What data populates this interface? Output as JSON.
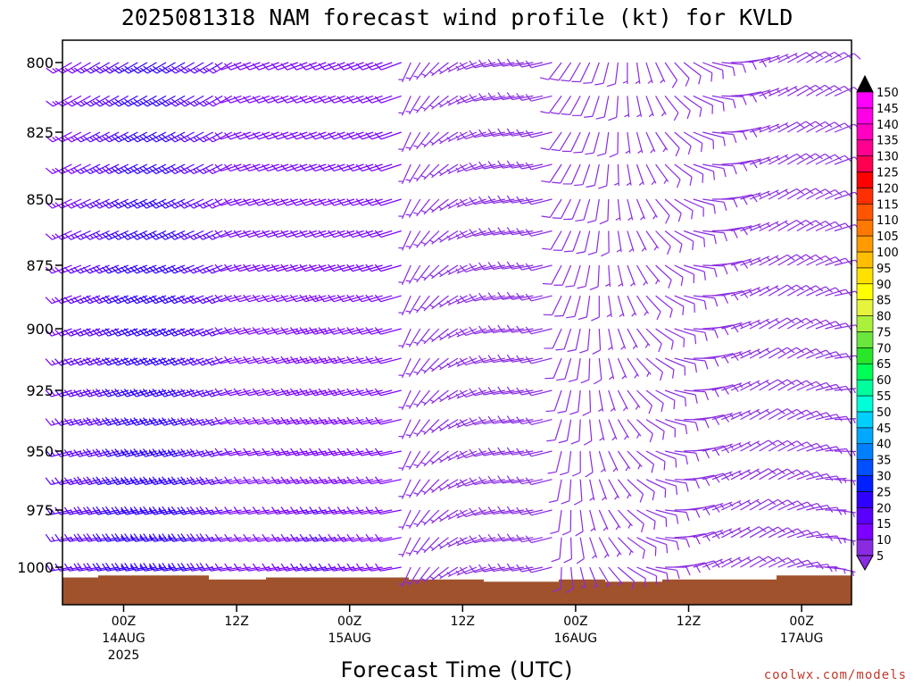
{
  "chart_data": {
    "type": "wind-barb-time-height",
    "title": "2025081318 NAM forecast wind profile (kt) for KVLD",
    "xlabel": "Forecast Time (UTC)",
    "ylabel": "",
    "pressure_ticks": [
      800,
      825,
      850,
      875,
      900,
      925,
      950,
      975,
      1000
    ],
    "pressure_range": [
      790,
      1013
    ],
    "time_range_hours": [
      -6,
      64
    ],
    "time_ticks": [
      {
        "hour": 0,
        "label": "00Z",
        "date": "14AUG",
        "year": "2025"
      },
      {
        "hour": 12,
        "label": "12Z",
        "date": "",
        "year": ""
      },
      {
        "hour": 24,
        "label": "00Z",
        "date": "15AUG",
        "year": ""
      },
      {
        "hour": 36,
        "label": "12Z",
        "date": "",
        "year": ""
      },
      {
        "hour": 48,
        "label": "00Z",
        "date": "16AUG",
        "year": ""
      },
      {
        "hour": 60,
        "label": "12Z",
        "date": "",
        "year": ""
      },
      {
        "hour": 72,
        "label": "00Z",
        "date": "17AUG",
        "year": ""
      }
    ],
    "barb_pressures": [
      1000,
      987,
      975,
      962,
      950,
      937,
      925,
      912,
      900,
      887,
      875,
      862,
      850,
      837,
      825,
      812,
      800
    ],
    "barb_interval_hours": 1,
    "colorbar": {
      "levels": [
        5,
        10,
        15,
        20,
        25,
        30,
        35,
        40,
        45,
        50,
        55,
        60,
        65,
        70,
        75,
        80,
        85,
        90,
        95,
        100,
        105,
        110,
        115,
        120,
        125,
        130,
        135,
        140,
        145,
        150
      ],
      "colors": [
        "#8a2be2",
        "#7b00ff",
        "#5a00ff",
        "#3000ff",
        "#0020ff",
        "#0050ff",
        "#0080ff",
        "#00a8ff",
        "#00d0ff",
        "#00ffd8",
        "#00ff9c",
        "#00ff55",
        "#2ae62a",
        "#6ae63c",
        "#aaf03c",
        "#e6f53c",
        "#ffff00",
        "#ffe100",
        "#ffbe00",
        "#ff9b00",
        "#ff7800",
        "#ff5500",
        "#ff2f00",
        "#ff0000",
        "#ff0050",
        "#ff0090",
        "#ff00c0",
        "#ff00e6",
        "#ff00ff",
        "#ff00ff"
      ]
    },
    "ground_color": "#a0522d",
    "ground_pressure_profile": [
      {
        "hour": -6,
        "p": 1005
      },
      {
        "hour": 0,
        "p": 1004
      },
      {
        "hour": 6,
        "p": 1004
      },
      {
        "hour": 12,
        "p": 1006
      },
      {
        "hour": 18,
        "p": 1005
      },
      {
        "hour": 24,
        "p": 1005
      },
      {
        "hour": 36,
        "p": 1006
      },
      {
        "hour": 40,
        "p": 1007
      },
      {
        "hour": 44,
        "p": 1007
      },
      {
        "hour": 48,
        "p": 1006
      },
      {
        "hour": 54,
        "p": 1007
      },
      {
        "hour": 60,
        "p": 1006
      },
      {
        "hour": 66,
        "p": 1006
      },
      {
        "hour": 72,
        "p": 1004
      },
      {
        "hour": 76,
        "p": 1004
      }
    ]
  },
  "footer": {
    "credit": "coolwx.com/models"
  }
}
